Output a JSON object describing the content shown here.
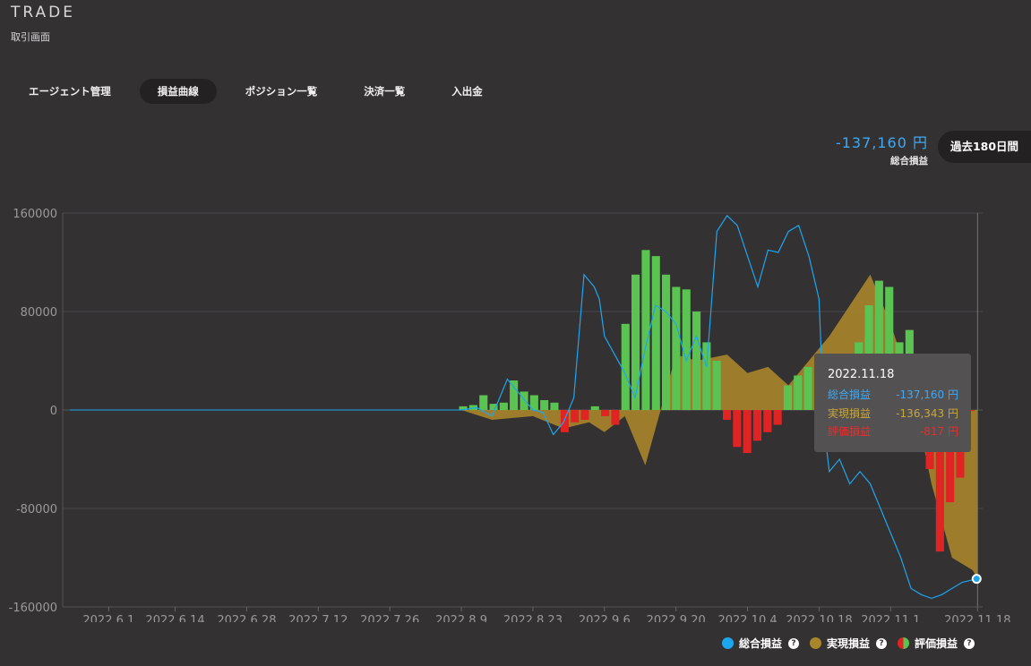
{
  "header": {
    "brand": "TRADE",
    "subtitle": "取引画面"
  },
  "tabs": [
    "エージェント管理",
    "損益曲線",
    "ポジション一覧",
    "決済一覧",
    "入出金"
  ],
  "active_tab": "損益曲線",
  "summary": {
    "total_value": "-137,160 円",
    "total_label": "総合損益",
    "period_button": "過去180日間"
  },
  "tooltip": {
    "date": "2022.11.18",
    "rows": [
      {
        "label": "総合損益",
        "value": "-137,160 円",
        "color": "#3fa9f5"
      },
      {
        "label": "実現損益",
        "value": "-136,343 円",
        "color": "#c9a83a"
      },
      {
        "label": "評価損益",
        "value": "-817 円",
        "color": "#e03030"
      }
    ]
  },
  "legend": [
    {
      "label": "総合損益",
      "color": "#1da6f0"
    },
    {
      "label": "実現損益",
      "color": "#a8862a"
    },
    {
      "label": "評価損益",
      "color": "split"
    }
  ],
  "colors": {
    "total": "#1da6f0",
    "realized": "#a8862a",
    "positive": "#5bc352",
    "negative": "#e02424"
  },
  "chart_data": {
    "type": "area",
    "ylim": [
      -160000,
      160000
    ],
    "yticks": [
      "160000",
      "80000",
      "0",
      "-80000",
      "-160000"
    ],
    "xlabels": [
      "2022.6.1",
      "2022.6.14",
      "2022.6.28",
      "2022.7.12",
      "2022.7.26",
      "2022.8.9",
      "2022.8.23",
      "2022.9.6",
      "2022.9.20",
      "2022.10.4",
      "2022.10.18",
      "2022.11.1",
      "2022.11.18"
    ],
    "series": [
      {
        "name": "総合損益",
        "type": "line",
        "x": [
          "2022.8.9",
          "2022.8.12",
          "2022.8.15",
          "2022.8.18",
          "2022.8.21",
          "2022.8.23",
          "2022.8.25",
          "2022.8.27",
          "2022.8.29",
          "2022.8.31",
          "2022.9.2",
          "2022.9.4",
          "2022.9.5",
          "2022.9.6",
          "2022.9.8",
          "2022.9.10",
          "2022.9.12",
          "2022.9.14",
          "2022.9.16",
          "2022.9.18",
          "2022.9.20",
          "2022.9.22",
          "2022.9.24",
          "2022.9.26",
          "2022.9.28",
          "2022.9.30",
          "2022.10.2",
          "2022.10.4",
          "2022.10.6",
          "2022.10.8",
          "2022.10.10",
          "2022.10.12",
          "2022.10.14",
          "2022.10.16",
          "2022.10.18",
          "2022.10.19",
          "2022.10.20",
          "2022.10.22",
          "2022.10.24",
          "2022.10.26",
          "2022.10.28",
          "2022.10.30",
          "2022.11.1",
          "2022.11.3",
          "2022.11.5",
          "2022.11.7",
          "2022.11.9",
          "2022.11.11",
          "2022.11.13",
          "2022.11.15",
          "2022.11.17",
          "2022.11.18"
        ],
        "values": [
          0,
          2000,
          -5000,
          25000,
          10000,
          0,
          -2000,
          -20000,
          -10000,
          10000,
          110000,
          100000,
          90000,
          60000,
          45000,
          30000,
          10000,
          50000,
          85000,
          80000,
          70000,
          40000,
          60000,
          35000,
          145000,
          158000,
          150000,
          125000,
          100000,
          130000,
          128000,
          145000,
          150000,
          125000,
          90000,
          -15000,
          -50000,
          -40000,
          -60000,
          -50000,
          -60000,
          -80000,
          -100000,
          -120000,
          -145000,
          -150000,
          -153000,
          -150000,
          -145000,
          -140000,
          -138000,
          -137160
        ]
      },
      {
        "name": "実現損益",
        "type": "area",
        "x": [
          "2022.8.9",
          "2022.8.15",
          "2022.8.23",
          "2022.8.29",
          "2022.9.3",
          "2022.9.6",
          "2022.9.10",
          "2022.9.14",
          "2022.9.20",
          "2022.9.24",
          "2022.9.30",
          "2022.10.4",
          "2022.10.8",
          "2022.10.12",
          "2022.10.16",
          "2022.10.20",
          "2022.10.24",
          "2022.10.28",
          "2022.11.1",
          "2022.11.5",
          "2022.11.9",
          "2022.11.13",
          "2022.11.17",
          "2022.11.18"
        ],
        "values": [
          0,
          -8000,
          -5000,
          -15000,
          -10000,
          -18000,
          -5000,
          -45000,
          45000,
          40000,
          45000,
          30000,
          35000,
          20000,
          40000,
          60000,
          85000,
          110000,
          70000,
          20000,
          -60000,
          -120000,
          -130000,
          -136343
        ]
      },
      {
        "name": "評価損益",
        "type": "bar",
        "values": [
          3000,
          4000,
          12000,
          5000,
          6000,
          24000,
          15000,
          12000,
          8000,
          6000,
          -18000,
          -10000,
          -8000,
          3000,
          -5000,
          -12000,
          70000,
          110000,
          130000,
          125000,
          110000,
          100000,
          98000,
          80000,
          55000,
          40000,
          -8000,
          -30000,
          -35000,
          -25000,
          -18000,
          -12000,
          20000,
          28000,
          35000,
          30000,
          18000,
          30000,
          40000,
          55000,
          85000,
          105000,
          100000,
          55000,
          65000,
          30000,
          -48000,
          -115000,
          -75000,
          -55000,
          -817
        ]
      }
    ]
  }
}
